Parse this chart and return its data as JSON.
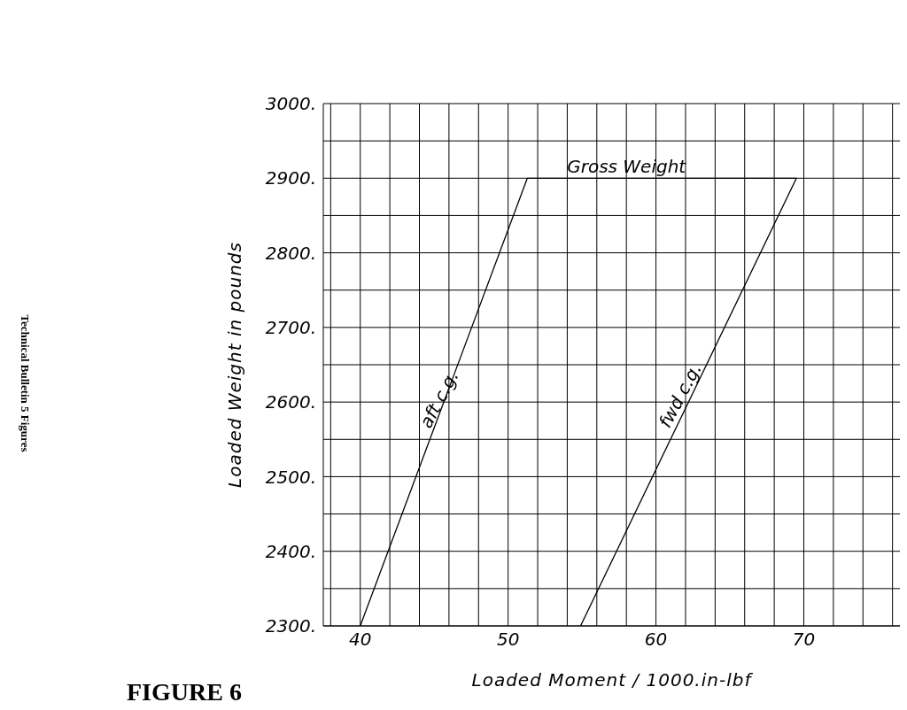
{
  "chart_data": {
    "type": "line",
    "xlabel": "Loaded Moment / 1000.in-lbf",
    "ylabel": "Loaded Weight in pounds",
    "series": [
      {
        "color": "#000000",
        "x": [
          40,
          51.3,
          69.5,
          54.9
        ],
        "values": [
          2300,
          2900,
          2900,
          2300
        ]
      }
    ],
    "xlim": [
      37.5,
      76.5
    ],
    "ylim": [
      2300,
      3000
    ],
    "xticks": [
      {
        "value": 38,
        "label": null
      },
      40,
      {
        "value": 42,
        "label": null
      },
      {
        "value": 44,
        "label": null
      },
      {
        "value": 46,
        "label": null
      },
      {
        "value": 48,
        "label": null
      },
      50,
      {
        "value": 52,
        "label": null
      },
      {
        "value": 54,
        "label": null
      },
      {
        "value": 56,
        "label": null
      },
      {
        "value": 58,
        "label": null
      },
      60,
      {
        "value": 62,
        "label": null
      },
      {
        "value": 64,
        "label": null
      },
      {
        "value": 66,
        "label": null
      },
      {
        "value": 68,
        "label": null
      },
      70,
      {
        "value": 72,
        "label": null
      },
      {
        "value": 74,
        "label": null
      },
      {
        "value": 76,
        "label": null
      }
    ],
    "yticks": [
      {
        "value": 2300,
        "label": "2300."
      },
      {
        "value": 2350,
        "label": null
      },
      {
        "value": 2400,
        "label": "2400."
      },
      {
        "value": 2450,
        "label": null
      },
      {
        "value": 2500,
        "label": "2500."
      },
      {
        "value": 2550,
        "label": null
      },
      {
        "value": 2600,
        "label": "2600."
      },
      {
        "value": 2650,
        "label": null
      },
      {
        "value": 2700,
        "label": "2700."
      },
      {
        "value": 2750,
        "label": null
      },
      {
        "value": 2800,
        "label": "2800."
      },
      {
        "value": 2850,
        "label": null
      },
      {
        "value": 2900,
        "label": "2900."
      },
      {
        "value": 2950,
        "label": null
      },
      {
        "value": 3000,
        "label": "3000."
      }
    ],
    "grid": true,
    "marker": "none",
    "line_style": "solid",
    "annotations": [
      {
        "text": "Gross Weight",
        "x": 58,
        "y": 2900
      },
      {
        "text": "aft c.g.",
        "x": 45.7,
        "y": 2600
      },
      {
        "text": "fwd c.g.",
        "x": 62,
        "y": 2605
      },
      "FIGURE 6",
      "Technical Bulletin 5 Figures"
    ]
  }
}
